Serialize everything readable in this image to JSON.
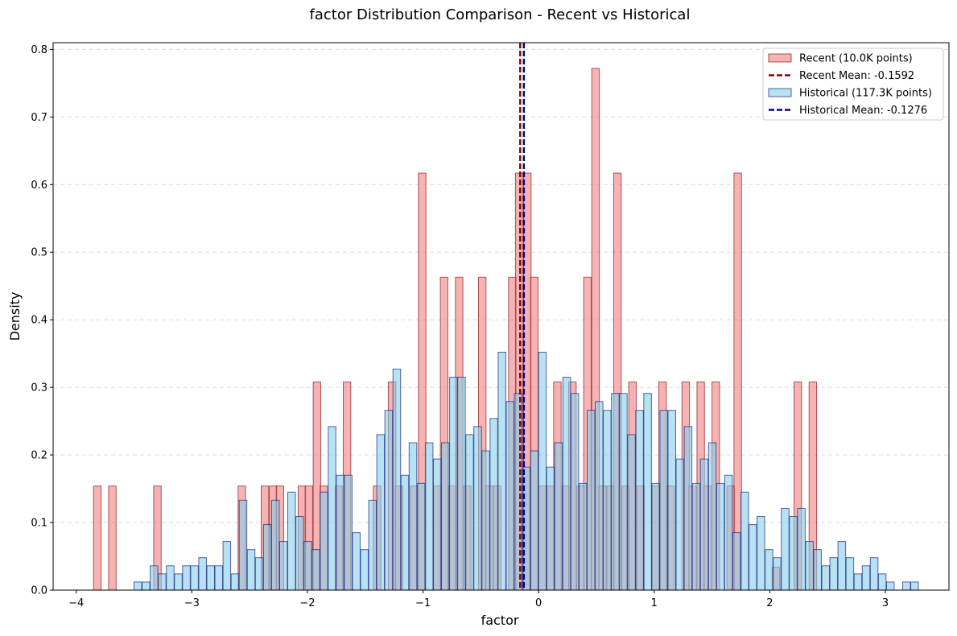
{
  "chart_data": {
    "type": "bar",
    "title": "factor Distribution Comparison - Recent vs Historical",
    "xlabel": "factor",
    "ylabel": "Density",
    "xlim": [
      -4.2,
      3.55
    ],
    "ylim": [
      0,
      0.81
    ],
    "xticks": [
      -4,
      -3,
      -2,
      -1,
      0,
      1,
      2,
      3
    ],
    "xtick_labels": [
      "−4",
      "−3",
      "−2",
      "−1",
      "0",
      "1",
      "2",
      "3"
    ],
    "yticks": [
      0.0,
      0.1,
      0.2,
      0.3,
      0.4,
      0.5,
      0.6,
      0.7,
      0.8
    ],
    "ytick_labels": [
      "0.0",
      "0.1",
      "0.2",
      "0.3",
      "0.4",
      "0.5",
      "0.6",
      "0.7",
      "0.8"
    ],
    "grid": "y-dashed",
    "legend_position": "top-right",
    "series": [
      {
        "name": "Recent (10.0K points)",
        "kind": "histogram",
        "color": "#f08080",
        "edge_color": "#8b1a1a",
        "bin_width": 0.065,
        "bins": [
          {
            "x": -3.85,
            "h": 0.154
          },
          {
            "x": -3.72,
            "h": 0.154
          },
          {
            "x": -3.33,
            "h": 0.154
          },
          {
            "x": -2.6,
            "h": 0.154
          },
          {
            "x": -2.4,
            "h": 0.154
          },
          {
            "x": -2.33,
            "h": 0.154
          },
          {
            "x": -2.27,
            "h": 0.154
          },
          {
            "x": -2.08,
            "h": 0.154
          },
          {
            "x": -2.02,
            "h": 0.154
          },
          {
            "x": -1.95,
            "h": 0.308
          },
          {
            "x": -1.89,
            "h": 0.154
          },
          {
            "x": -1.76,
            "h": 0.154
          },
          {
            "x": -1.69,
            "h": 0.308
          },
          {
            "x": -1.43,
            "h": 0.154
          },
          {
            "x": -1.3,
            "h": 0.308
          },
          {
            "x": -1.24,
            "h": 0.154
          },
          {
            "x": -1.11,
            "h": 0.154
          },
          {
            "x": -1.04,
            "h": 0.617
          },
          {
            "x": -0.91,
            "h": 0.154
          },
          {
            "x": -0.85,
            "h": 0.463
          },
          {
            "x": -0.78,
            "h": 0.154
          },
          {
            "x": -0.72,
            "h": 0.463
          },
          {
            "x": -0.65,
            "h": 0.154
          },
          {
            "x": -0.52,
            "h": 0.463
          },
          {
            "x": -0.46,
            "h": 0.154
          },
          {
            "x": -0.39,
            "h": 0.154
          },
          {
            "x": -0.26,
            "h": 0.463
          },
          {
            "x": -0.2,
            "h": 0.617
          },
          {
            "x": -0.13,
            "h": 0.617
          },
          {
            "x": -0.07,
            "h": 0.463
          },
          {
            "x": 0.0,
            "h": 0.154
          },
          {
            "x": 0.07,
            "h": 0.154
          },
          {
            "x": 0.13,
            "h": 0.308
          },
          {
            "x": 0.2,
            "h": 0.154
          },
          {
            "x": 0.26,
            "h": 0.308
          },
          {
            "x": 0.33,
            "h": 0.154
          },
          {
            "x": 0.39,
            "h": 0.463
          },
          {
            "x": 0.46,
            "h": 0.772
          },
          {
            "x": 0.52,
            "h": 0.154
          },
          {
            "x": 0.59,
            "h": 0.154
          },
          {
            "x": 0.65,
            "h": 0.617
          },
          {
            "x": 0.72,
            "h": 0.154
          },
          {
            "x": 0.78,
            "h": 0.308
          },
          {
            "x": 0.85,
            "h": 0.154
          },
          {
            "x": 0.98,
            "h": 0.154
          },
          {
            "x": 1.04,
            "h": 0.308
          },
          {
            "x": 1.11,
            "h": 0.154
          },
          {
            "x": 1.24,
            "h": 0.308
          },
          {
            "x": 1.3,
            "h": 0.154
          },
          {
            "x": 1.37,
            "h": 0.308
          },
          {
            "x": 1.43,
            "h": 0.154
          },
          {
            "x": 1.5,
            "h": 0.308
          },
          {
            "x": 1.63,
            "h": 0.154
          },
          {
            "x": 1.69,
            "h": 0.617
          },
          {
            "x": 2.02,
            "h": 0.034
          },
          {
            "x": 2.21,
            "h": 0.308
          },
          {
            "x": 2.34,
            "h": 0.308
          }
        ],
        "mean_line": {
          "label": "Recent Mean: -0.1592",
          "value": -0.1592,
          "color": "#8b0000"
        }
      },
      {
        "name": "Historical (117.3K points)",
        "kind": "histogram",
        "color": "#87ceeb",
        "edge_color": "#1a237e",
        "bin_width": 0.066,
        "bins": [
          {
            "x": -3.5,
            "h": 0.012
          },
          {
            "x": -3.43,
            "h": 0.012
          },
          {
            "x": -3.36,
            "h": 0.036
          },
          {
            "x": -3.29,
            "h": 0.024
          },
          {
            "x": -3.22,
            "h": 0.036
          },
          {
            "x": -3.15,
            "h": 0.024
          },
          {
            "x": -3.08,
            "h": 0.036
          },
          {
            "x": -3.01,
            "h": 0.036
          },
          {
            "x": -2.94,
            "h": 0.048
          },
          {
            "x": -2.87,
            "h": 0.036
          },
          {
            "x": -2.8,
            "h": 0.036
          },
          {
            "x": -2.73,
            "h": 0.072
          },
          {
            "x": -2.66,
            "h": 0.024
          },
          {
            "x": -2.59,
            "h": 0.133
          },
          {
            "x": -2.52,
            "h": 0.06
          },
          {
            "x": -2.45,
            "h": 0.048
          },
          {
            "x": -2.38,
            "h": 0.097
          },
          {
            "x": -2.31,
            "h": 0.133
          },
          {
            "x": -2.24,
            "h": 0.072
          },
          {
            "x": -2.17,
            "h": 0.145
          },
          {
            "x": -2.1,
            "h": 0.109
          },
          {
            "x": -2.03,
            "h": 0.072
          },
          {
            "x": -1.96,
            "h": 0.06
          },
          {
            "x": -1.89,
            "h": 0.145
          },
          {
            "x": -1.82,
            "h": 0.242
          },
          {
            "x": -1.75,
            "h": 0.17
          },
          {
            "x": -1.68,
            "h": 0.17
          },
          {
            "x": -1.61,
            "h": 0.085
          },
          {
            "x": -1.54,
            "h": 0.06
          },
          {
            "x": -1.47,
            "h": 0.133
          },
          {
            "x": -1.4,
            "h": 0.23
          },
          {
            "x": -1.33,
            "h": 0.266
          },
          {
            "x": -1.26,
            "h": 0.327
          },
          {
            "x": -1.19,
            "h": 0.17
          },
          {
            "x": -1.12,
            "h": 0.218
          },
          {
            "x": -1.05,
            "h": 0.158
          },
          {
            "x": -0.98,
            "h": 0.218
          },
          {
            "x": -0.91,
            "h": 0.194
          },
          {
            "x": -0.84,
            "h": 0.218
          },
          {
            "x": -0.77,
            "h": 0.315
          },
          {
            "x": -0.7,
            "h": 0.315
          },
          {
            "x": -0.63,
            "h": 0.23
          },
          {
            "x": -0.56,
            "h": 0.242
          },
          {
            "x": -0.49,
            "h": 0.206
          },
          {
            "x": -0.42,
            "h": 0.254
          },
          {
            "x": -0.35,
            "h": 0.352
          },
          {
            "x": -0.28,
            "h": 0.279
          },
          {
            "x": -0.21,
            "h": 0.291
          },
          {
            "x": -0.14,
            "h": 0.182
          },
          {
            "x": -0.07,
            "h": 0.206
          },
          {
            "x": 0.0,
            "h": 0.352
          },
          {
            "x": 0.07,
            "h": 0.182
          },
          {
            "x": 0.14,
            "h": 0.218
          },
          {
            "x": 0.21,
            "h": 0.315
          },
          {
            "x": 0.28,
            "h": 0.291
          },
          {
            "x": 0.35,
            "h": 0.158
          },
          {
            "x": 0.42,
            "h": 0.266
          },
          {
            "x": 0.49,
            "h": 0.279
          },
          {
            "x": 0.56,
            "h": 0.266
          },
          {
            "x": 0.63,
            "h": 0.291
          },
          {
            "x": 0.7,
            "h": 0.291
          },
          {
            "x": 0.77,
            "h": 0.23
          },
          {
            "x": 0.84,
            "h": 0.266
          },
          {
            "x": 0.91,
            "h": 0.291
          },
          {
            "x": 0.98,
            "h": 0.158
          },
          {
            "x": 1.05,
            "h": 0.266
          },
          {
            "x": 1.12,
            "h": 0.266
          },
          {
            "x": 1.19,
            "h": 0.194
          },
          {
            "x": 1.26,
            "h": 0.242
          },
          {
            "x": 1.33,
            "h": 0.158
          },
          {
            "x": 1.4,
            "h": 0.194
          },
          {
            "x": 1.47,
            "h": 0.218
          },
          {
            "x": 1.54,
            "h": 0.158
          },
          {
            "x": 1.61,
            "h": 0.17
          },
          {
            "x": 1.68,
            "h": 0.085
          },
          {
            "x": 1.75,
            "h": 0.145
          },
          {
            "x": 1.82,
            "h": 0.097
          },
          {
            "x": 1.89,
            "h": 0.109
          },
          {
            "x": 1.96,
            "h": 0.06
          },
          {
            "x": 2.03,
            "h": 0.048
          },
          {
            "x": 2.1,
            "h": 0.121
          },
          {
            "x": 2.17,
            "h": 0.109
          },
          {
            "x": 2.24,
            "h": 0.121
          },
          {
            "x": 2.31,
            "h": 0.072
          },
          {
            "x": 2.38,
            "h": 0.06
          },
          {
            "x": 2.45,
            "h": 0.036
          },
          {
            "x": 2.52,
            "h": 0.048
          },
          {
            "x": 2.59,
            "h": 0.072
          },
          {
            "x": 2.66,
            "h": 0.048
          },
          {
            "x": 2.73,
            "h": 0.024
          },
          {
            "x": 2.8,
            "h": 0.036
          },
          {
            "x": 2.87,
            "h": 0.048
          },
          {
            "x": 2.94,
            "h": 0.024
          },
          {
            "x": 3.01,
            "h": 0.012
          },
          {
            "x": 3.15,
            "h": 0.012
          },
          {
            "x": 3.22,
            "h": 0.012
          }
        ],
        "mean_line": {
          "label": "Historical Mean: -0.1276",
          "value": -0.1276,
          "color": "#000080"
        }
      }
    ]
  }
}
